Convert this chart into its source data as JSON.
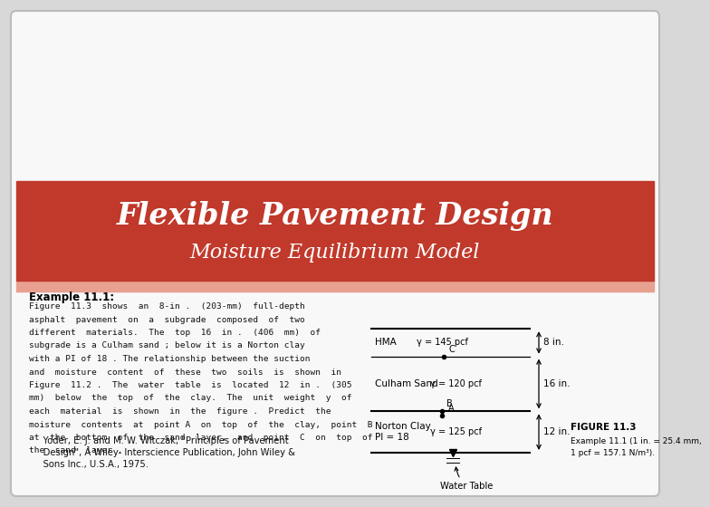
{
  "bg_color": "#d8d8d8",
  "slide_bg": "#ffffff",
  "header_bg": "#c0392b",
  "header_strip_color": "#e8a090",
  "header_title": "Flexible Pavement Design",
  "header_subtitle": "Moisture Equilibrium Model",
  "header_title_color": "#ffffff",
  "content_bg": "#f8f8f8",
  "example_label": "Example 11.1:",
  "body_lines": [
    "Figure  11.3  shows  an  8-in .  (203-mm)  full-depth",
    "asphalt  pavement  on  a  subgrade  composed  of  two",
    "different  materials.  The  top  16  in .  (406  mm)  of",
    "subgrade is a Culham sand ; below it is a Norton clay",
    "with a PI of 18 . The relationship between the suction",
    "and  moisture  content  of  these  two  soils  is  shown  in",
    "Figure  11.2 .  The  water  table  is  located  12  in .  (305",
    "mm)  below  the  top  of  the  clay.  The  unit  weight  y  of",
    "each  material  is  shown  in  the  figure .  Predict  the",
    "moisture  contents  at  point A  on  top  of  the  clay,  point  B",
    "at  the  bottom  of  the  sand  layer,  and  point  C  on  top  of",
    "the  sand  layer ."
  ],
  "ref_lines": [
    "     Yoder, E. J. and M. W. Witczak, \"Principles of Pavement",
    "     Design\", A Wiley- Interscience Publication, John Wiley &",
    "     Sons Inc., U.S.A., 1975."
  ],
  "fig_label": "FIGURE 11.3",
  "fig_note_line1": "Example 11.1 (1 in. = 25.4 mm,",
  "fig_note_line2": "1 pcf = 157.1 N/m³).",
  "hma_label": "HMA",
  "hma_gamma": "γ = 145 pcf",
  "hma_height_label": "8 in.",
  "sand_label": "Culham Sand",
  "sand_gamma": "γ = 120 pcf",
  "sand_height_label": "16 in.",
  "clay_label_1": "Norton Clay",
  "clay_label_2": "PI = 18",
  "clay_gamma": "γ = 125 pcf",
  "clay_height_label": "12 in.",
  "water_label": "Water Table",
  "point_A": "A",
  "point_B": "B",
  "point_C": "C"
}
